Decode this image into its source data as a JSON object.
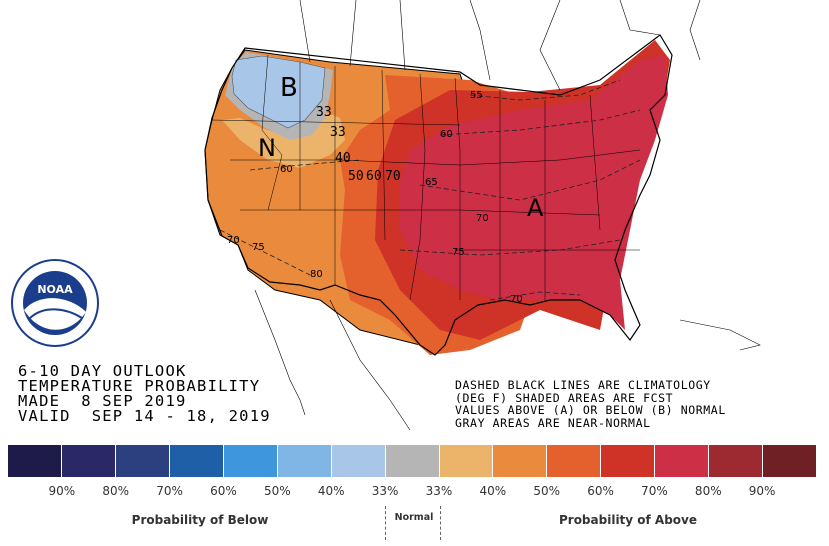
{
  "outlook_text": {
    "line1": "6-10 DAY OUTLOOK",
    "line2": "TEMPERATURE PROBABILITY",
    "line3": "MADE  8 SEP 2019",
    "line4": "VALID  SEP 14 - 18, 2019"
  },
  "notes": {
    "line1": "DASHED BLACK LINES ARE CLIMATOLOGY",
    "line2": "(DEG F) SHADED AREAS ARE FCST",
    "line3": "VALUES ABOVE (A) OR BELOW (B) NORMAL",
    "line4": "GRAY AREAS ARE NEAR-NORMAL"
  },
  "map_labels": {
    "below": "B",
    "normal": "N",
    "above": "A",
    "c33a": "33",
    "c33b": "33",
    "c40": "40",
    "c50": "50",
    "c60": "60",
    "c70": "70",
    "clim55": "55",
    "clim60n": "60",
    "clim60w": "60",
    "clim65": "65",
    "clim70w": "70",
    "clim70c": "70",
    "clim70s": "70",
    "clim75w": "75",
    "clim75": "75",
    "clim80": "80"
  },
  "logo": {
    "text": "NOAA"
  },
  "legend": {
    "colors": [
      "#1e1b4b",
      "#2a2867",
      "#2c3f7f",
      "#1f5fa8",
      "#3e97dc",
      "#7fb6e6",
      "#a7c6e8",
      "#b5b5b5",
      "#ebb46a",
      "#e98a3c",
      "#e4602c",
      "#cf3227",
      "#cc2f46",
      "#9d2a30",
      "#6f2025"
    ],
    "ticks": [
      "90%",
      "80%",
      "70%",
      "60%",
      "50%",
      "40%",
      "33%",
      "33%",
      "40%",
      "50%",
      "60%",
      "70%",
      "80%",
      "90%"
    ],
    "below_label": "Probability of Below",
    "normal_label": "Normal",
    "above_label": "Probability of Above"
  }
}
